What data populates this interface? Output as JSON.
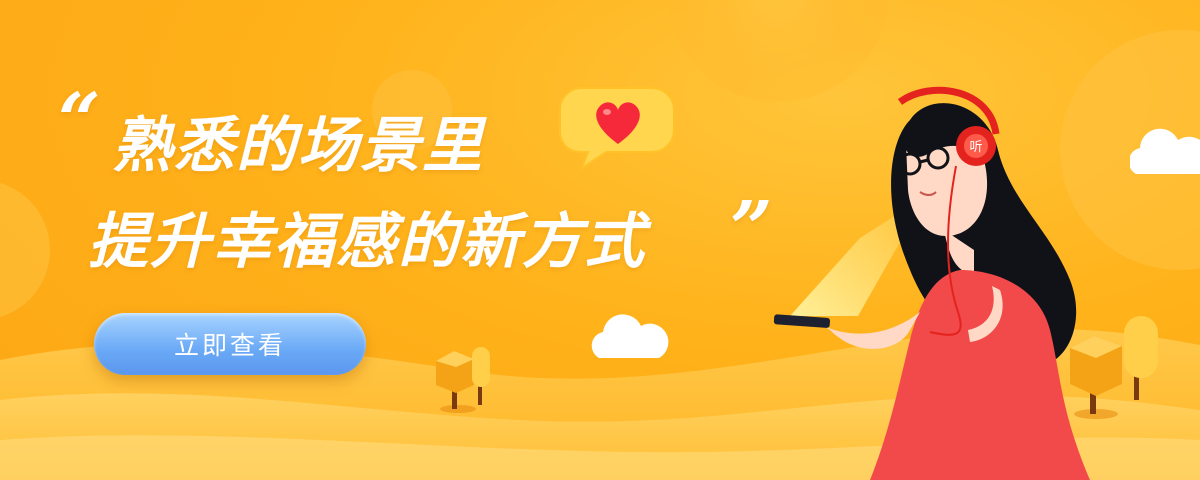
{
  "headline": {
    "open_quote": "“",
    "line1": "熟悉的场景里",
    "line2": "提升幸福感的新方式",
    "close_quote": "”"
  },
  "cta": {
    "label": "立即查看"
  },
  "headphone_badge": "听",
  "colors": {
    "background": "#ffb21c",
    "cta_start": "#a9d4ff",
    "cta_end": "#5b97ee",
    "dress": "#f24a4a",
    "headphones": "#e5231e",
    "heart": "#f5293a"
  },
  "icons": [
    "heart-icon",
    "cloud-icon",
    "tree-icon",
    "headphones-icon",
    "phone-icon"
  ]
}
